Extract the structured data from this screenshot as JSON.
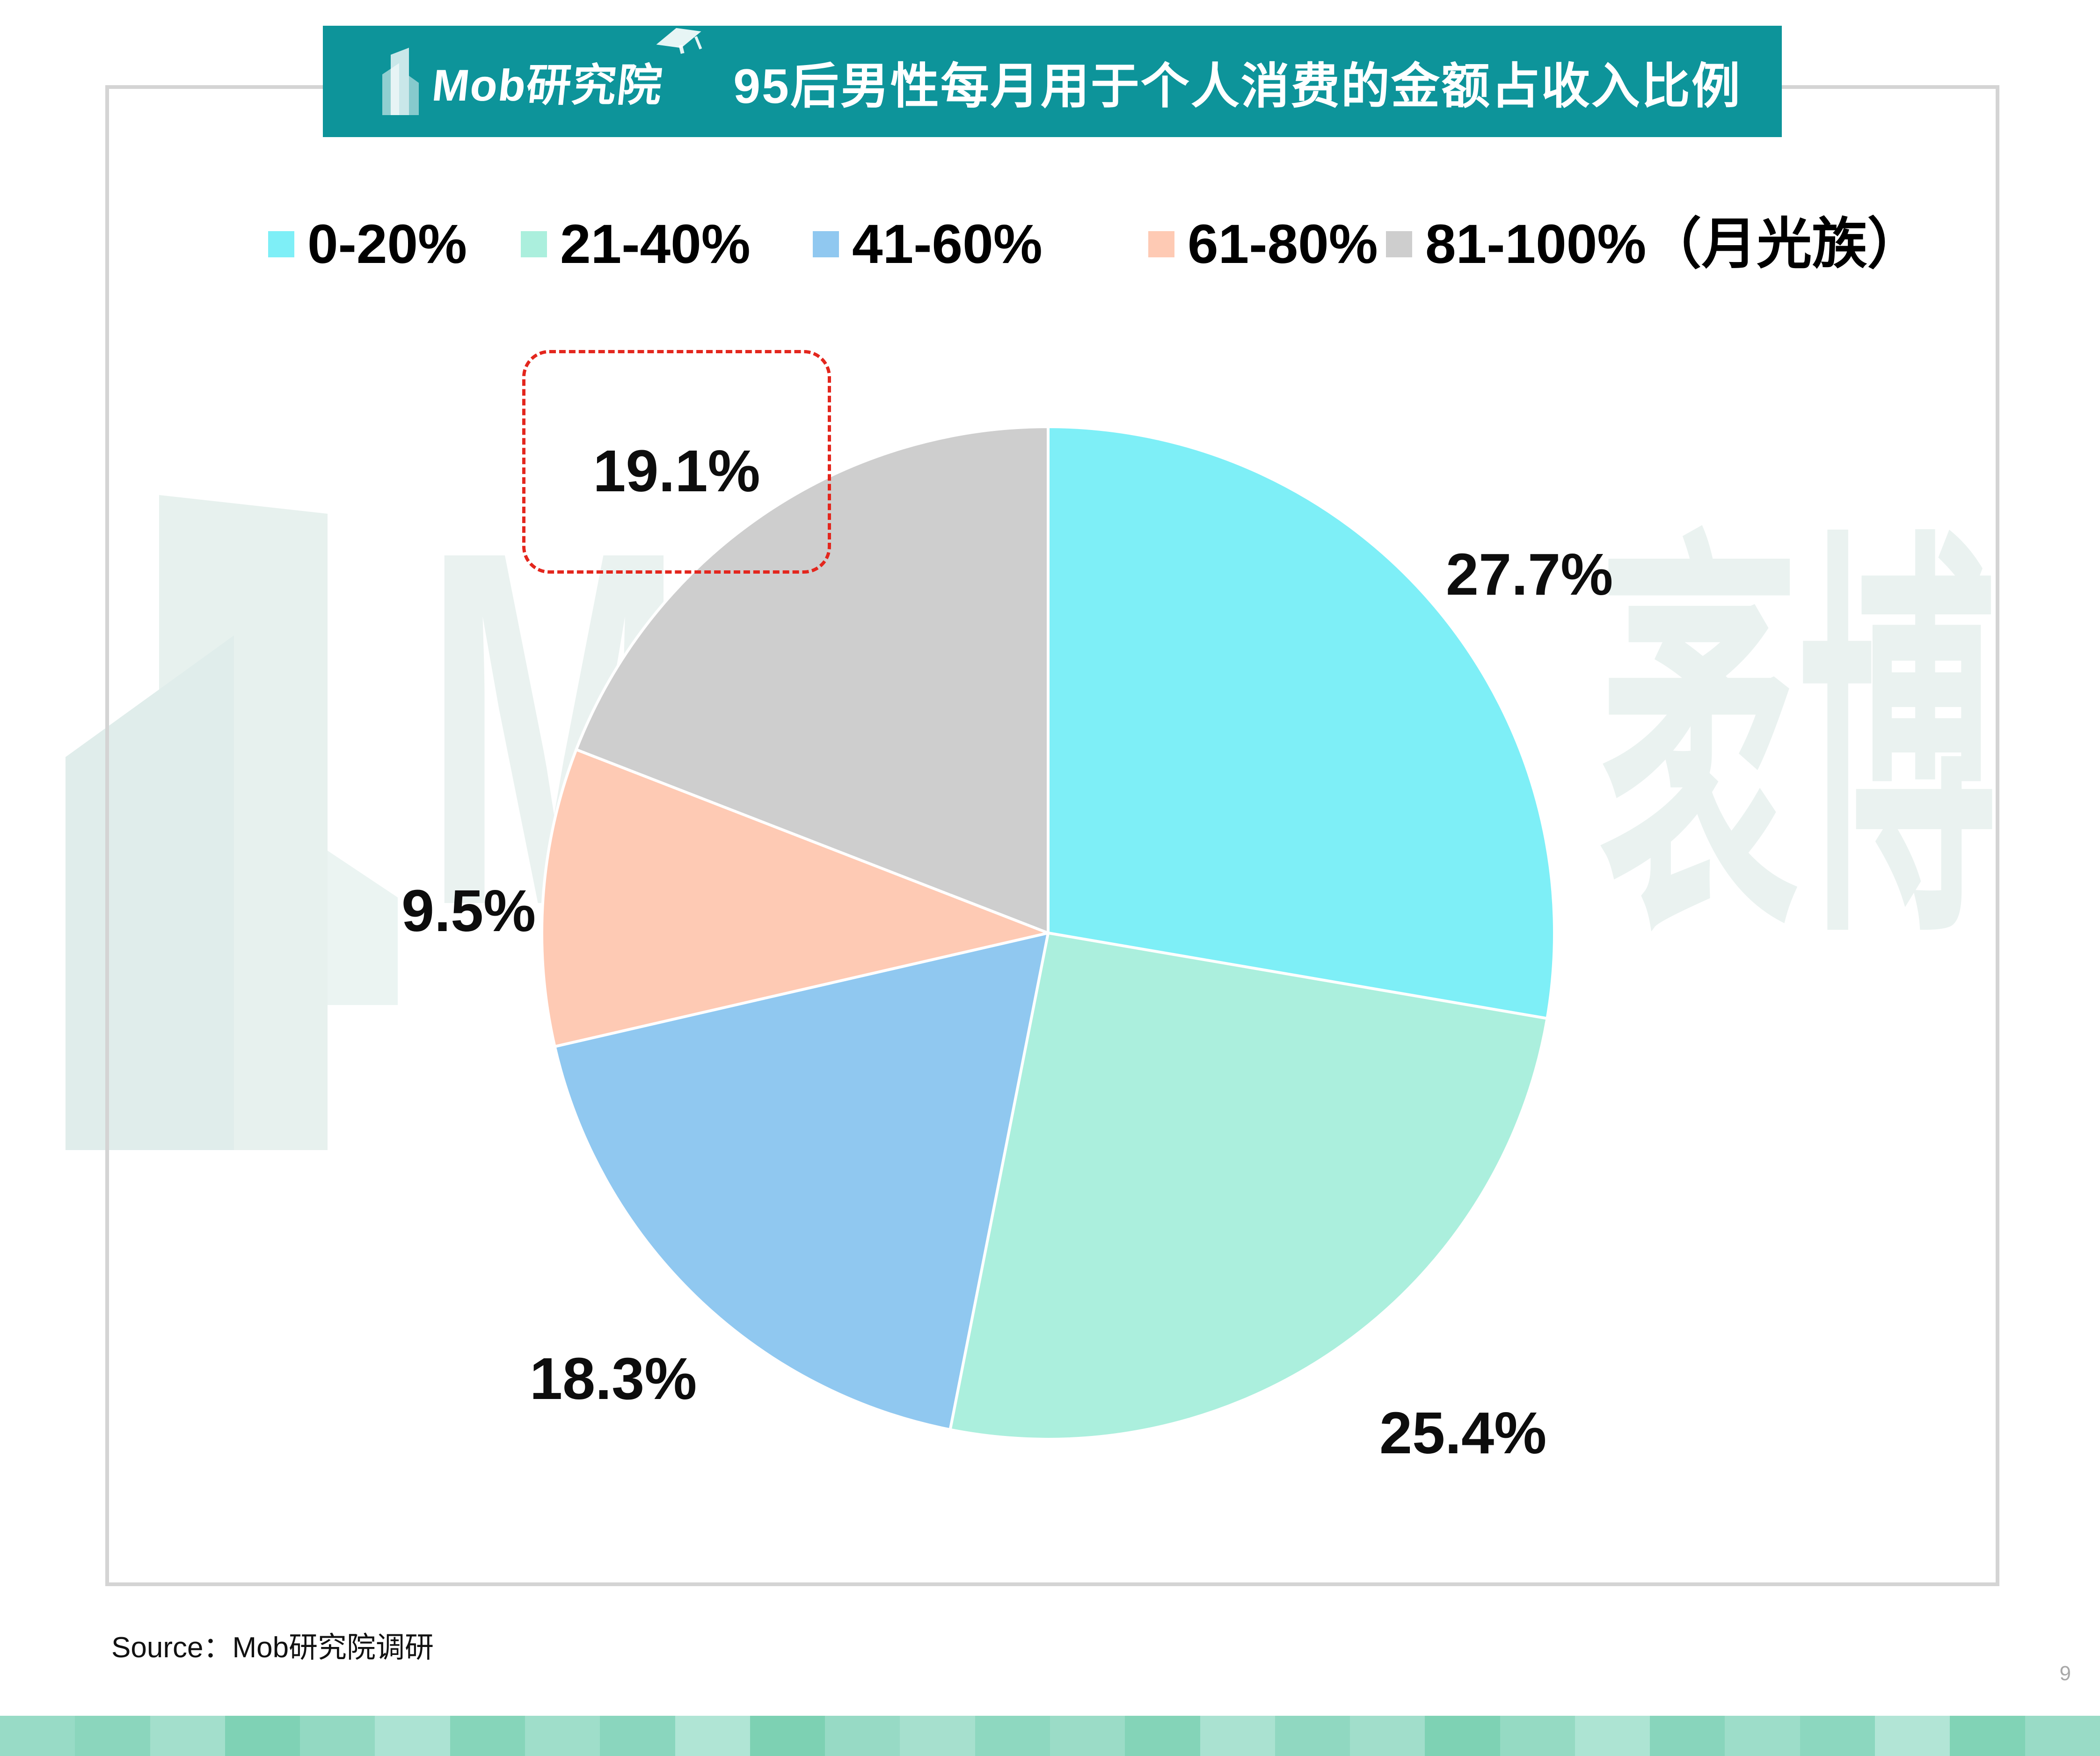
{
  "header": {
    "logo": {
      "brand": "Mob研究院",
      "building_icon": "building-icon",
      "cap_icon": "graduation-cap-icon"
    },
    "title": "95后男性每月用于个人消费的金额占收入比例"
  },
  "legend": {
    "items": [
      {
        "label": "0-20%",
        "color": "#7EEFF7"
      },
      {
        "label": "21-40%",
        "color": "#ABEFDD"
      },
      {
        "label": "41-60%",
        "color": "#90C8F0"
      },
      {
        "label": "61-80%",
        "color": "#FECAB4"
      },
      {
        "label": "81-100%（月光族）",
        "color": "#CECECE"
      }
    ]
  },
  "chart_data": {
    "type": "pie",
    "title": "95后男性每月用于个人消费的金额占收入比例",
    "categories": [
      "0-20%",
      "21-40%",
      "41-60%",
      "61-80%",
      "81-100%（月光族）"
    ],
    "values": [
      27.7,
      25.4,
      18.3,
      9.5,
      19.1
    ],
    "labels": [
      "27.7%",
      "25.4%",
      "18.3%",
      "9.5%",
      "19.1%"
    ],
    "colors": [
      "#7EEFF7",
      "#ABEFDD",
      "#90C8F0",
      "#FECAB4",
      "#CECECE"
    ],
    "start_angle_deg": 0,
    "direction": "clockwise",
    "highlighted_index": 4,
    "highlight_style": "red-dashed-box",
    "legend_position": "top",
    "accent_color": "#0D949A"
  },
  "watermark": {
    "left_text": "M",
    "right_text": "袤博"
  },
  "footer": {
    "source": "Source：Mob研究院调研",
    "page_number": "9"
  },
  "footer_strip_colors": [
    "#98DBC6",
    "#8BD6BD",
    "#A3DFCC",
    "#7FD2B5",
    "#93D9C2",
    "#ACE3D3",
    "#86D5BA",
    "#9FDECA",
    "#8AD6BE",
    "#B0E5D5",
    "#7DD1B3",
    "#97DAC5",
    "#A6E0CE",
    "#8ED8C0",
    "#9BDCC7",
    "#84D4B8",
    "#AAE2D1",
    "#90D8C1",
    "#A1DECB",
    "#7ED2B4",
    "#95DAC3",
    "#ADE4D3",
    "#88D5BC",
    "#9DDDC9",
    "#8CD7BF",
    "#B2E5D6",
    "#81D3B6",
    "#99DBC6"
  ]
}
